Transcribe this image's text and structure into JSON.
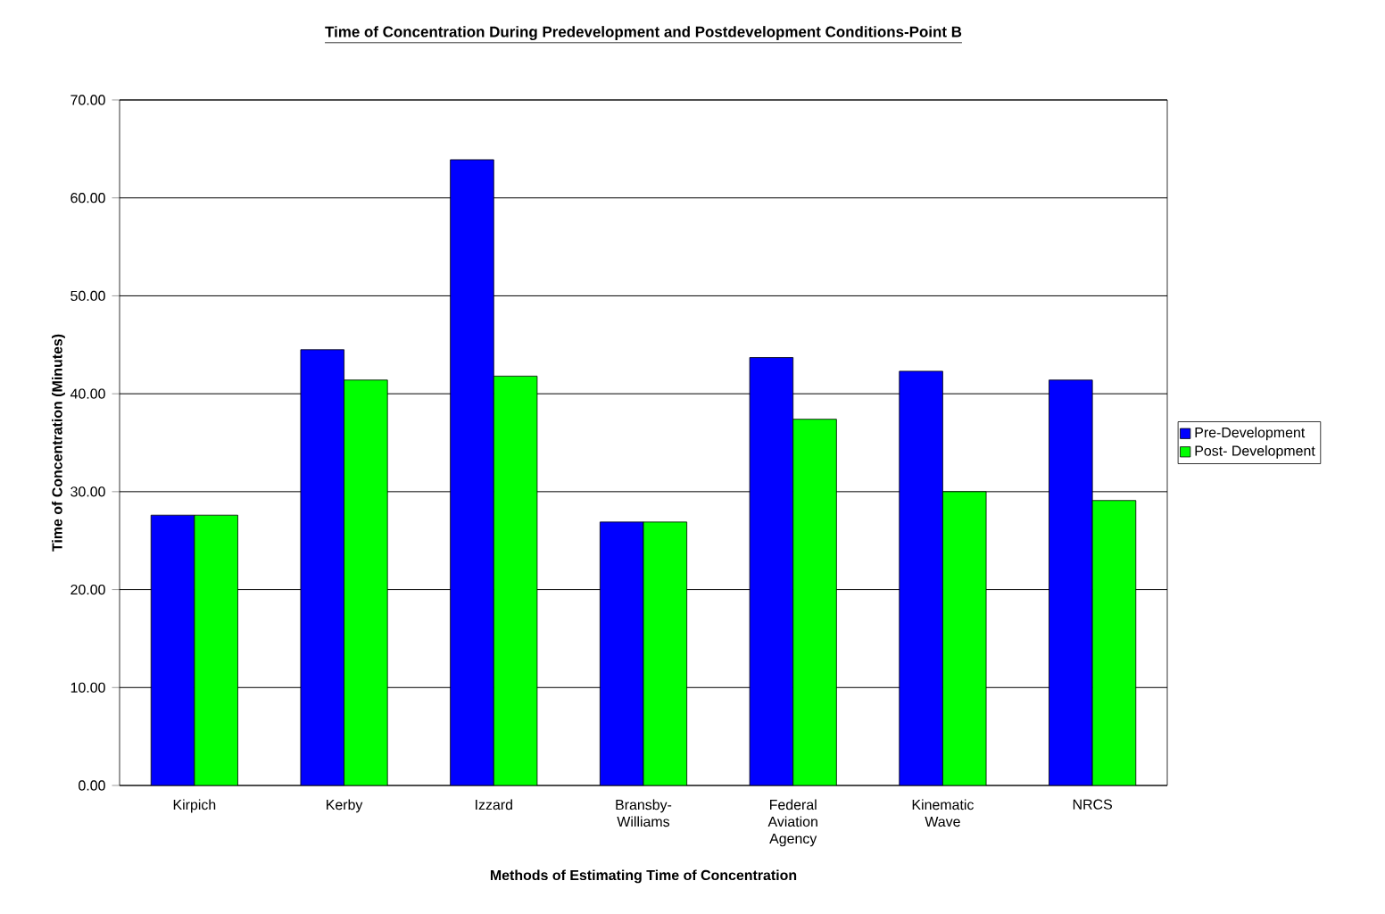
{
  "chart_data": {
    "type": "bar",
    "title": "Time of Concentration During Predevelopment and Postdevelopment Conditions-Point B",
    "xlabel": "Methods of Estimating Time of Concentration",
    "ylabel": "Time of Concentration (Minutes)",
    "categories": [
      "Kirpich",
      "Kerby",
      "Izzard",
      "Bransby-Williams",
      "Federal Aviation Agency",
      "Kinematic Wave",
      "NRCS"
    ],
    "series": [
      {
        "name": "Pre-Development",
        "color": "#0000ff",
        "values": [
          27.6,
          44.5,
          63.9,
          26.9,
          43.7,
          42.3,
          41.4
        ]
      },
      {
        "name": "Post- Development",
        "color": "#00ff00",
        "values": [
          27.6,
          41.4,
          41.8,
          26.9,
          37.4,
          30.0,
          29.1
        ]
      }
    ],
    "ylim": [
      0,
      70
    ],
    "yticks": [
      {
        "value": 0,
        "label": "0.00"
      },
      {
        "value": 10,
        "label": "10.00"
      },
      {
        "value": 20,
        "label": "20.00"
      },
      {
        "value": 30,
        "label": "30.00"
      },
      {
        "value": 40,
        "label": "40.00"
      },
      {
        "value": 50,
        "label": "50.00"
      },
      {
        "value": 60,
        "label": "60.00"
      },
      {
        "value": 70,
        "label": "70.00"
      }
    ],
    "grid": "y",
    "legend": "right"
  }
}
